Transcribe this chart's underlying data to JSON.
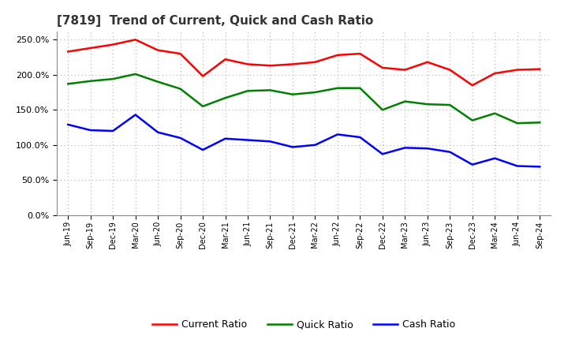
{
  "title": "[7819]  Trend of Current, Quick and Cash Ratio",
  "x_labels": [
    "Jun-19",
    "Sep-19",
    "Dec-19",
    "Mar-20",
    "Jun-20",
    "Sep-20",
    "Dec-20",
    "Mar-21",
    "Jun-21",
    "Sep-21",
    "Dec-21",
    "Mar-22",
    "Jun-22",
    "Sep-22",
    "Dec-22",
    "Mar-23",
    "Jun-23",
    "Sep-23",
    "Dec-23",
    "Mar-24",
    "Jun-24",
    "Sep-24"
  ],
  "current_ratio": [
    233,
    238,
    243,
    250,
    235,
    230,
    198,
    222,
    215,
    213,
    215,
    218,
    228,
    230,
    210,
    207,
    218,
    207,
    185,
    202,
    207,
    208
  ],
  "quick_ratio": [
    187,
    191,
    194,
    201,
    190,
    180,
    155,
    167,
    177,
    178,
    172,
    175,
    181,
    181,
    150,
    162,
    158,
    157,
    135,
    145,
    131,
    132
  ],
  "cash_ratio": [
    129,
    121,
    120,
    143,
    118,
    110,
    93,
    109,
    107,
    105,
    97,
    100,
    115,
    111,
    87,
    96,
    95,
    90,
    72,
    81,
    70,
    69
  ],
  "current_color": "#FF0000",
  "quick_color": "#008000",
  "cash_color": "#0000FF",
  "bg_color": "#FFFFFF",
  "plot_bg_color": "#FFFFFF",
  "ylim": [
    0,
    262
  ],
  "yticks": [
    0,
    50,
    100,
    150,
    200,
    250
  ],
  "grid_color": "#AAAAAA",
  "line_width": 1.8
}
